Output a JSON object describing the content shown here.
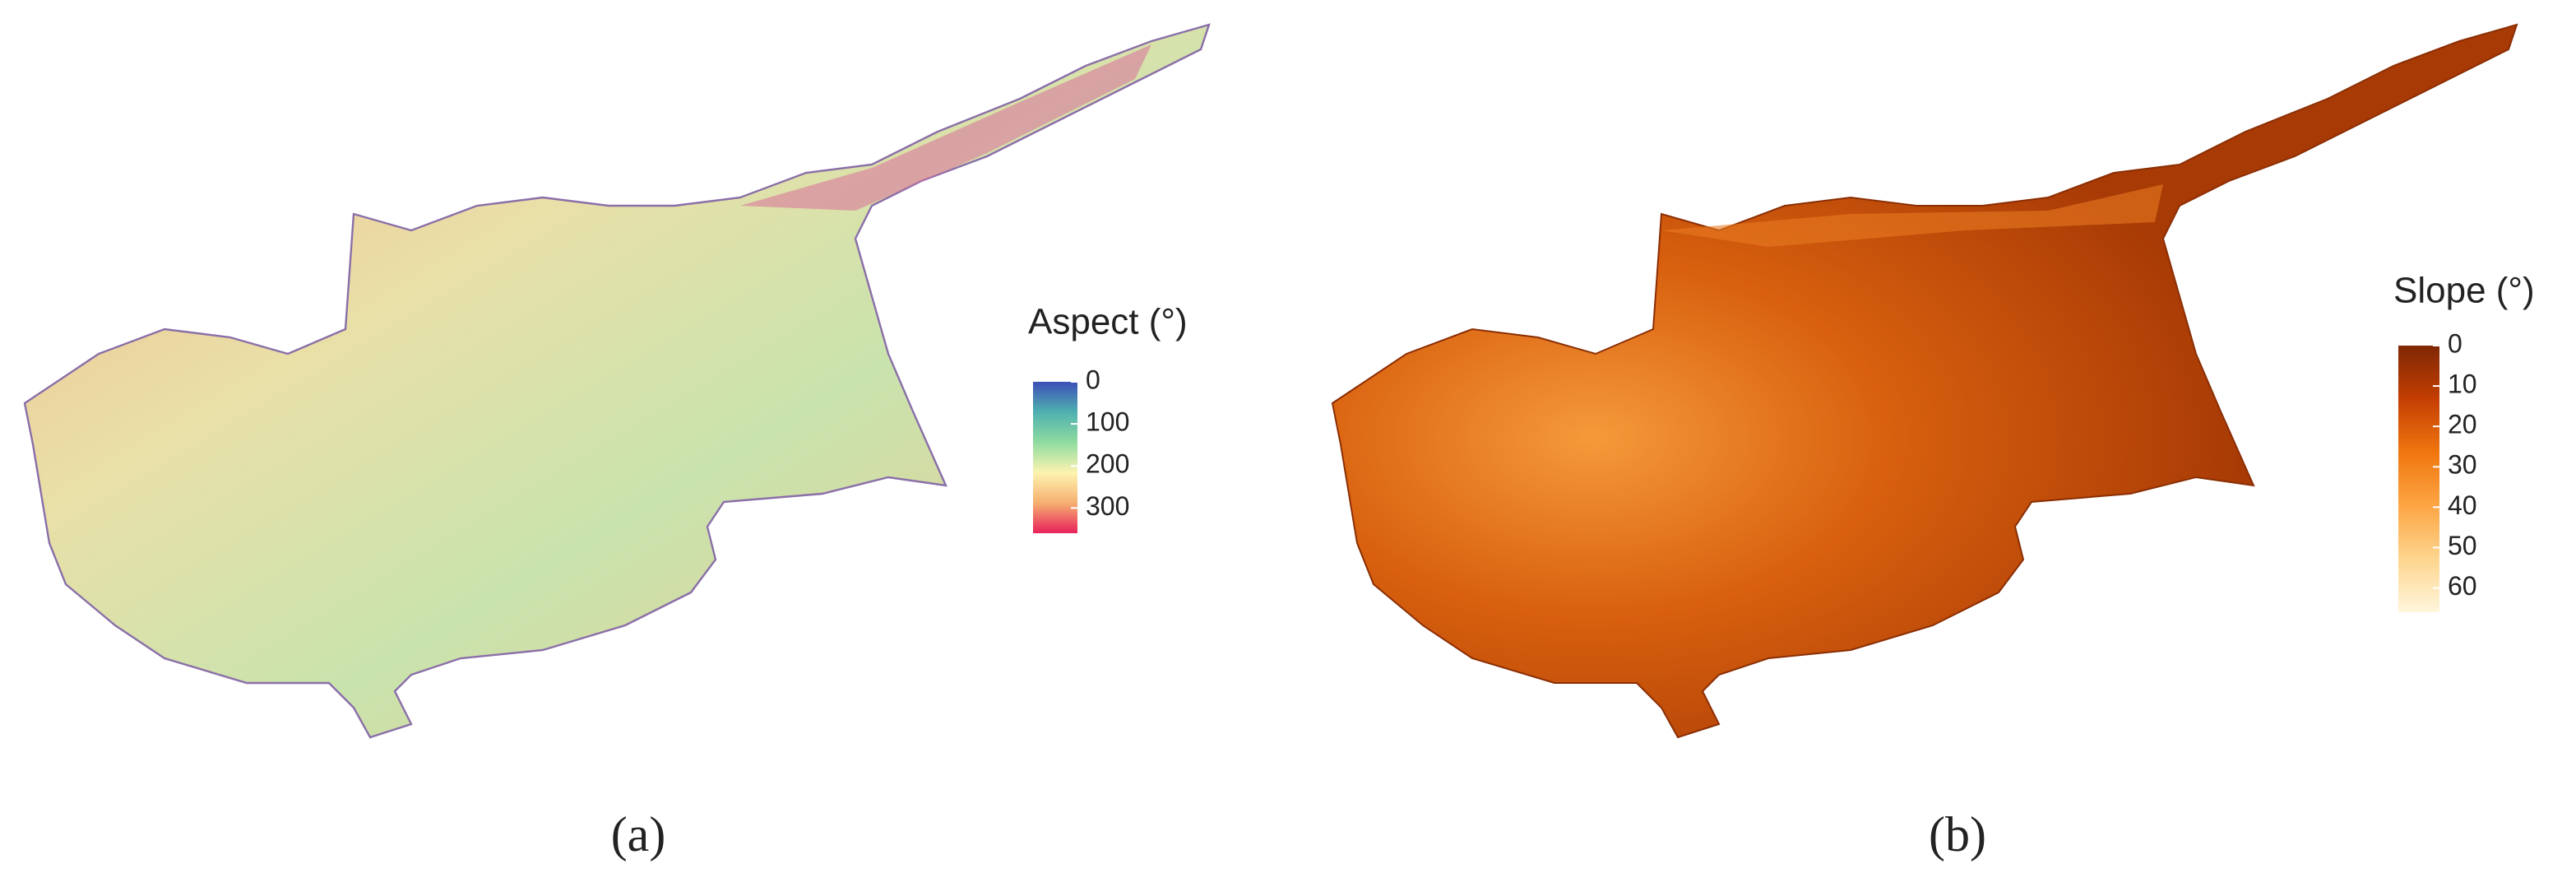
{
  "panels": [
    {
      "caption": "(a)",
      "legend": {
        "title": "Aspect (°)",
        "range": [
          0,
          360
        ],
        "ticks": [
          0,
          100,
          200,
          300
        ],
        "colors": [
          "#3d4fb8",
          "#4fb0b0",
          "#8fdca0",
          "#fdf3b0",
          "#f6b070",
          "#e8205a"
        ]
      }
    },
    {
      "caption": "(b)",
      "legend": {
        "title": "Slope (°)",
        "range": [
          0,
          66
        ],
        "ticks": [
          0,
          10,
          20,
          30,
          40,
          50,
          60
        ],
        "colors": [
          "#7f2704",
          "#c43e03",
          "#f0760f",
          "#fda544",
          "#fdd58e",
          "#fff6dc"
        ]
      }
    }
  ]
}
